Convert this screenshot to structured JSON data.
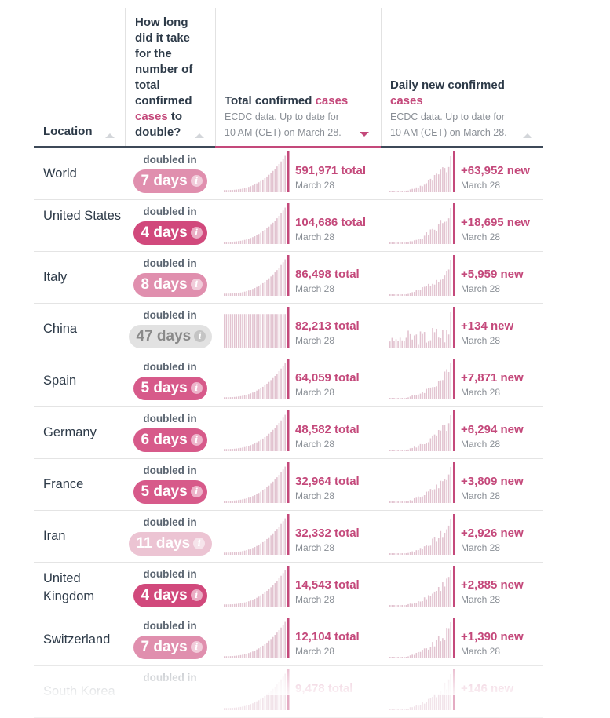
{
  "header": {
    "location": "Location",
    "doubling": [
      "How long",
      "did it take",
      "for the",
      "number of",
      "total",
      "confirmed",
      "cases",
      "to",
      "double?"
    ],
    "total_title_a": "Total confirmed ",
    "total_title_b": "cases",
    "total_sub": [
      "ECDC data. Up to date for",
      "10 AM (CET) on March 28."
    ],
    "daily_title_a": "Daily new confirmed",
    "daily_title_b": "cases",
    "daily_sub": [
      "ECDC data. Up to date for",
      "10 AM (CET) on March 28."
    ]
  },
  "colors": {
    "accent": "#c4497b",
    "bar": "#e2c3d0",
    "dark": "#2d3a48",
    "muted": "#8a8f96"
  },
  "chart_data": {
    "type": "table",
    "columns": [
      "Location",
      "How long did it take for the number of total confirmed cases to double?",
      "Total confirmed cases",
      "Daily new confirmed cases"
    ],
    "date": "March 28",
    "rows": [
      {
        "location": "World",
        "doubled_label": "doubled in",
        "days": "7 days",
        "days_num": 7,
        "total": "591,971 total",
        "total_num": 591971,
        "daily": "+63,952 new",
        "daily_num": 63952,
        "date": "March 28"
      },
      {
        "location": "United States",
        "doubled_label": "doubled in",
        "days": "4 days",
        "days_num": 4,
        "total": "104,686 total",
        "total_num": 104686,
        "daily": "+18,695 new",
        "daily_num": 18695,
        "date": "March 28"
      },
      {
        "location": "Italy",
        "doubled_label": "doubled in",
        "days": "8 days",
        "days_num": 8,
        "total": "86,498 total",
        "total_num": 86498,
        "daily": "+5,959 new",
        "daily_num": 5959,
        "date": "March 28"
      },
      {
        "location": "China",
        "doubled_label": "doubled in",
        "days": "47 days",
        "days_num": 47,
        "total": "82,213 total",
        "total_num": 82213,
        "daily": "+134 new",
        "daily_num": 134,
        "date": "March 28"
      },
      {
        "location": "Spain",
        "doubled_label": "doubled in",
        "days": "5 days",
        "days_num": 5,
        "total": "64,059 total",
        "total_num": 64059,
        "daily": "+7,871 new",
        "daily_num": 7871,
        "date": "March 28"
      },
      {
        "location": "Germany",
        "doubled_label": "doubled in",
        "days": "6 days",
        "days_num": 6,
        "total": "48,582 total",
        "total_num": 48582,
        "daily": "+6,294 new",
        "daily_num": 6294,
        "date": "March 28"
      },
      {
        "location": "France",
        "doubled_label": "doubled in",
        "days": "5 days",
        "days_num": 5,
        "total": "32,964 total",
        "total_num": 32964,
        "daily": "+3,809 new",
        "daily_num": 3809,
        "date": "March 28"
      },
      {
        "location": "Iran",
        "doubled_label": "doubled in",
        "days": "11 days",
        "days_num": 11,
        "total": "32,332 total",
        "total_num": 32332,
        "daily": "+2,926 new",
        "daily_num": 2926,
        "date": "March 28"
      },
      {
        "location": "United Kingdom",
        "doubled_label": "doubled in",
        "days": "4 days",
        "days_num": 4,
        "total": "14,543 total",
        "total_num": 14543,
        "daily": "+2,885 new",
        "daily_num": 2885,
        "date": "March 28"
      },
      {
        "location": "Switzerland",
        "doubled_label": "doubled in",
        "days": "7 days",
        "days_num": 7,
        "total": "12,104 total",
        "total_num": 12104,
        "daily": "+1,390 new",
        "daily_num": 1390,
        "date": "March 28"
      },
      {
        "location": "South Korea",
        "doubled_label": "doubled in",
        "days": "",
        "days_num": null,
        "total": "9,478 total",
        "total_num": 9478,
        "daily": "+146 new",
        "daily_num": 146,
        "date": ""
      }
    ]
  }
}
